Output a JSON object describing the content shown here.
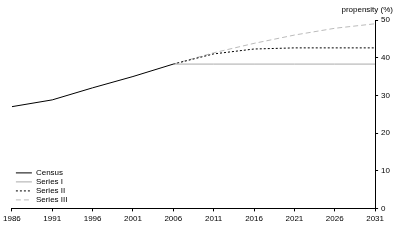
{
  "chart_data": {
    "type": "line",
    "ylabel": "propensity (%)",
    "x": [
      1986,
      1991,
      1996,
      2001,
      2006,
      2011,
      2016,
      2021,
      2026,
      2031
    ],
    "series": [
      {
        "name": "Census",
        "color": "#000000",
        "line_style": "solid",
        "values": [
          27,
          28.8,
          32,
          35,
          38.3,
          null,
          null,
          null,
          null,
          null
        ]
      },
      {
        "name": "Series I",
        "color": "#aaaaaa",
        "line_style": "solid",
        "values": [
          null,
          null,
          null,
          null,
          38.3,
          38.3,
          38.3,
          38.3,
          38.3,
          38.3
        ]
      },
      {
        "name": "Series II",
        "color": "#000000",
        "line_style": "dotted",
        "values": [
          null,
          null,
          null,
          null,
          38.3,
          41,
          42.3,
          42.6,
          42.6,
          42.6
        ]
      },
      {
        "name": "Series III",
        "color": "#bbbbbb",
        "line_style": "dashed",
        "values": [
          null,
          null,
          null,
          null,
          38.3,
          41.3,
          43.8,
          46,
          47.8,
          49
        ]
      }
    ],
    "xlim": [
      1986,
      2031
    ],
    "xticks": [
      1986,
      1991,
      1996,
      2001,
      2006,
      2011,
      2016,
      2021,
      2026,
      2031
    ],
    "ylim": [
      0,
      50
    ],
    "yticks": [
      0,
      10,
      20,
      30,
      40,
      50
    ],
    "grid": false,
    "legend": "lower left"
  }
}
